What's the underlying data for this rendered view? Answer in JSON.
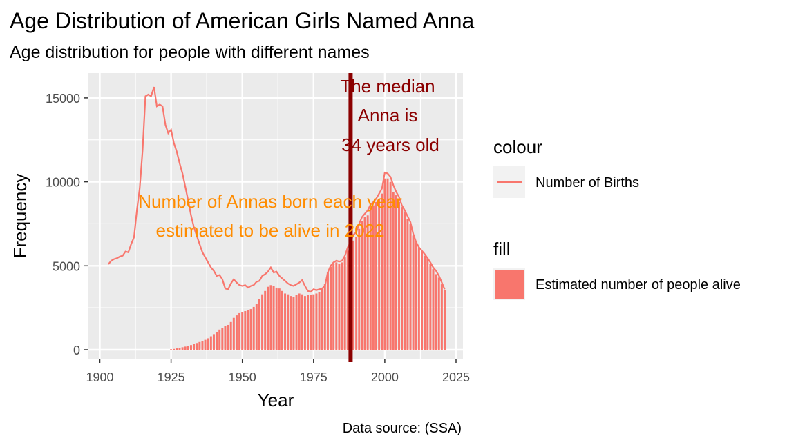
{
  "chart_data": {
    "type": "bar",
    "title": "Age Distribution of American Girls Named Anna",
    "subtitle": "Age distribution for people with different names",
    "caption": "Data source: (SSA)",
    "xlabel": "Year",
    "ylabel": "Frequency",
    "xlim": [
      1900,
      2025
    ],
    "ylim": [
      0,
      16000
    ],
    "x_ticks": [
      1900,
      1925,
      1950,
      1975,
      2000,
      2025
    ],
    "y_ticks": [
      0,
      5000,
      10000,
      15000
    ],
    "grid": true,
    "legend_placement": "right",
    "colors": {
      "panel": "#EBEBEB",
      "grid": "#FFFFFF",
      "bars": "#F8766D",
      "line": "#F8766D",
      "median_line": "#8B0000",
      "annotation_orange": "#FF8C00",
      "annotation_red": "#8B0000"
    },
    "legend": {
      "colour_title": "colour",
      "colour_label": "Number of Births",
      "fill_title": "fill",
      "fill_label": "Estimated number of people alive"
    },
    "annotations": {
      "births_lines": [
        "Number of Annas born each year",
        "estimated to be alive in 2022"
      ],
      "median_lines": [
        "The median",
        "Anna is",
        "34 years old"
      ]
    },
    "median_year": 1988,
    "series": [
      {
        "name": "Number of Births",
        "kind": "line",
        "x": [
          1903,
          1904,
          1905,
          1906,
          1907,
          1908,
          1909,
          1910,
          1911,
          1912,
          1913,
          1914,
          1915,
          1916,
          1917,
          1918,
          1919,
          1920,
          1921,
          1922,
          1923,
          1924,
          1925,
          1926,
          1927,
          1928,
          1929,
          1930,
          1931,
          1932,
          1933,
          1934,
          1935,
          1936,
          1937,
          1938,
          1939,
          1940,
          1941,
          1942,
          1943,
          1944,
          1945,
          1946,
          1947,
          1948,
          1949,
          1950,
          1951,
          1952,
          1953,
          1954,
          1955,
          1956,
          1957,
          1958,
          1959,
          1960,
          1961,
          1962,
          1963,
          1964,
          1965,
          1966,
          1967,
          1968,
          1969,
          1970,
          1971,
          1972,
          1973,
          1974,
          1975,
          1976,
          1977,
          1978,
          1979,
          1980,
          1981,
          1982,
          1983,
          1984,
          1985,
          1986,
          1987,
          1988,
          1989,
          1990,
          1991,
          1992,
          1993,
          1994,
          1995,
          1996,
          1997,
          1998,
          1999,
          2000,
          2001,
          2002,
          2003,
          2004,
          2005,
          2006,
          2007,
          2008,
          2009,
          2010,
          2011,
          2012,
          2013,
          2014,
          2015,
          2016,
          2017,
          2018,
          2019,
          2020,
          2021
        ],
        "y": [
          5100,
          5300,
          5400,
          5450,
          5550,
          5600,
          5850,
          5800,
          6300,
          6700,
          8300,
          9600,
          11900,
          15100,
          15200,
          15100,
          15650,
          14500,
          14600,
          14500,
          13400,
          12900,
          13100,
          12300,
          11800,
          11100,
          10500,
          9700,
          8900,
          8000,
          7300,
          6800,
          6300,
          5800,
          5500,
          5200,
          4900,
          4700,
          4400,
          4450,
          4200,
          3650,
          3600,
          3950,
          4200,
          4000,
          3850,
          3800,
          3850,
          3700,
          3800,
          3850,
          4050,
          4100,
          4400,
          4500,
          4650,
          4900,
          4600,
          4650,
          4400,
          4250,
          4100,
          3950,
          3850,
          3800,
          3900,
          4000,
          4150,
          3800,
          3500,
          3450,
          3600,
          3550,
          3600,
          3650,
          3800,
          4600,
          5000,
          5200,
          5300,
          5250,
          5300,
          5600,
          6100,
          6400,
          6850,
          7000,
          7500,
          7900,
          8100,
          8300,
          8650,
          8800,
          9000,
          9300,
          9600,
          10550,
          10500,
          10300,
          9800,
          9400,
          9100,
          8600,
          8300,
          7950,
          7600,
          6900,
          6400,
          6100,
          5900,
          5700,
          5450,
          5200,
          4900,
          4700,
          4400,
          4000,
          3600
        ]
      },
      {
        "name": "Estimated number of people alive",
        "kind": "bar",
        "x": [
          1925,
          1926,
          1927,
          1928,
          1929,
          1930,
          1931,
          1932,
          1933,
          1934,
          1935,
          1936,
          1937,
          1938,
          1939,
          1940,
          1941,
          1942,
          1943,
          1944,
          1945,
          1946,
          1947,
          1948,
          1949,
          1950,
          1951,
          1952,
          1953,
          1954,
          1955,
          1956,
          1957,
          1958,
          1959,
          1960,
          1961,
          1962,
          1963,
          1964,
          1965,
          1966,
          1967,
          1968,
          1969,
          1970,
          1971,
          1972,
          1973,
          1974,
          1975,
          1976,
          1977,
          1978,
          1979,
          1980,
          1981,
          1982,
          1983,
          1984,
          1985,
          1986,
          1987,
          1988,
          1989,
          1990,
          1991,
          1992,
          1993,
          1994,
          1995,
          1996,
          1997,
          1998,
          1999,
          2000,
          2001,
          2002,
          2003,
          2004,
          2005,
          2006,
          2007,
          2008,
          2009,
          2010,
          2011,
          2012,
          2013,
          2014,
          2015,
          2016,
          2017,
          2018,
          2019,
          2020,
          2021
        ],
        "y": [
          30,
          50,
          80,
          110,
          150,
          190,
          230,
          280,
          340,
          400,
          460,
          520,
          590,
          680,
          800,
          930,
          1060,
          1200,
          1300,
          1400,
          1480,
          1650,
          1900,
          2050,
          2180,
          2250,
          2300,
          2350,
          2420,
          2550,
          2750,
          3000,
          3300,
          3500,
          3750,
          3850,
          3800,
          3700,
          3650,
          3500,
          3350,
          3300,
          3200,
          3150,
          3250,
          3350,
          3300,
          3200,
          3250,
          3250,
          3300,
          3350,
          3450,
          3700,
          3900,
          4600,
          4950,
          5100,
          5200,
          5100,
          5200,
          5500,
          5900,
          6100,
          6500,
          6700,
          7200,
          7650,
          7900,
          8000,
          8500,
          8600,
          8800,
          9000,
          9300,
          10200,
          10200,
          10000,
          9400,
          9200,
          8800,
          8500,
          8200,
          7800,
          7500,
          6800,
          6400,
          6100,
          5900,
          5600,
          5450,
          5100,
          4800,
          4500,
          4300,
          3900,
          3550
        ]
      }
    ]
  }
}
